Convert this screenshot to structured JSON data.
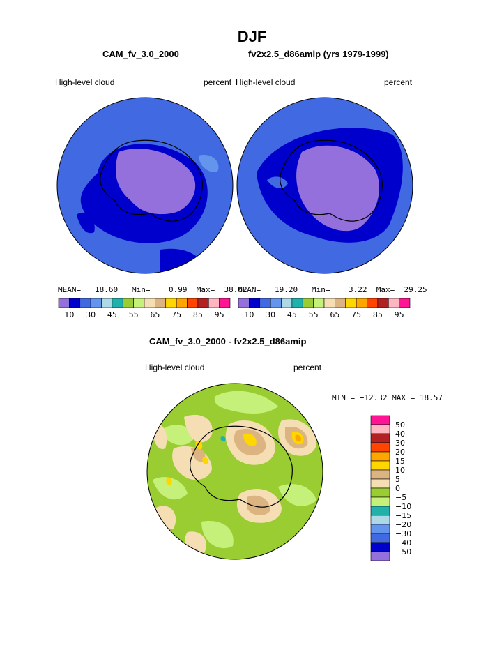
{
  "page_title": "DJF",
  "panels": [
    {
      "title": "CAM_fv_3.0_2000",
      "left_label": "High-level cloud",
      "right_label": "percent",
      "stats": {
        "mean_label": "MEAN=",
        "mean": "18.60",
        "min_label": "Min=",
        "min": "0.99",
        "max_label": "Max=",
        "max": "38.62"
      }
    },
    {
      "title": "fv2x2.5_d86amip (yrs 1979-1999)",
      "left_label": "High-level cloud",
      "right_label": "percent",
      "stats": {
        "mean_label": "MEAN=",
        "mean": "19.20",
        "min_label": "Min=",
        "min": "3.22",
        "max_label": "Max=",
        "max": "29.25"
      }
    }
  ],
  "diff_panel": {
    "title": "CAM_fv_3.0_2000 - fv2x2.5_d86amip",
    "left_label": "High-level cloud",
    "right_label": "percent",
    "minmax": "MIN = −12.32  MAX =   18.57"
  },
  "colorbar_top": {
    "colors": [
      "#9370db",
      "#0000cd",
      "#4169e1",
      "#6495ed",
      "#add8e6",
      "#20b2aa",
      "#9acd32",
      "#c5f07a",
      "#f5deb3",
      "#dcb482",
      "#ffd700",
      "#ffa500",
      "#ff4500",
      "#b22222",
      "#ffb6c1",
      "#ff1493"
    ],
    "labels": [
      "10",
      "30",
      "45",
      "55",
      "65",
      "75",
      "85",
      "95"
    ]
  },
  "colorbar_diff": {
    "colors": [
      "#ff1493",
      "#ffb6c1",
      "#b22222",
      "#ff4500",
      "#ffa500",
      "#ffd700",
      "#dcb482",
      "#f5deb3",
      "#9acd32",
      "#c5f07a",
      "#20b2aa",
      "#add8e6",
      "#6495ed",
      "#4169e1",
      "#0000cd",
      "#9370db"
    ],
    "labels": [
      "50",
      "40",
      "30",
      "20",
      "15",
      "10",
      "5",
      "0",
      "−5",
      "−10",
      "−15",
      "−20",
      "−30",
      "−40",
      "−50"
    ]
  },
  "chart_data": [
    {
      "type": "heatmap",
      "title": "CAM_fv_3.0_2000",
      "subtitle": "High-level cloud",
      "units": "percent",
      "projection": "south polar stereographic",
      "levels": [
        10,
        20,
        30,
        40,
        45,
        50,
        55,
        60,
        65,
        70,
        75,
        80,
        85,
        90,
        95
      ],
      "mean": 18.6,
      "min": 0.99,
      "max": 38.62
    },
    {
      "type": "heatmap",
      "title": "fv2x2.5_d86amip (yrs 1979-1999)",
      "subtitle": "High-level cloud",
      "units": "percent",
      "projection": "south polar stereographic",
      "levels": [
        10,
        20,
        30,
        40,
        45,
        50,
        55,
        60,
        65,
        70,
        75,
        80,
        85,
        90,
        95
      ],
      "mean": 19.2,
      "min": 3.22,
      "max": 29.25
    },
    {
      "type": "heatmap",
      "title": "CAM_fv_3.0_2000 - fv2x2.5_d86amip",
      "subtitle": "High-level cloud",
      "units": "percent",
      "projection": "south polar stereographic",
      "levels": [
        -50,
        -40,
        -30,
        -20,
        -15,
        -10,
        -5,
        0,
        5,
        10,
        15,
        20,
        30,
        40,
        50
      ],
      "min": -12.32,
      "max": 18.57
    }
  ]
}
